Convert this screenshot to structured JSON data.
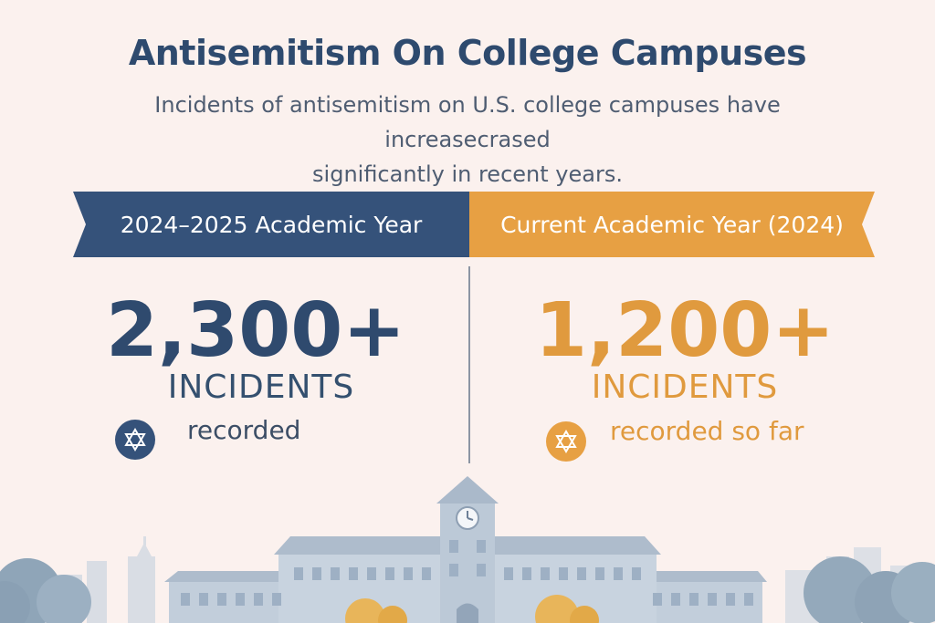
{
  "title": "Antisemitism On College Campuses",
  "subtitle_line1": "Incidents of antisemitism on U.S. college campuses have increasecrased",
  "subtitle_line2": "significantly in recent years.",
  "left": {
    "banner": "2024–2025 Academic Year",
    "count": "2,300+",
    "unit": "INCIDENTS",
    "note": "recorded",
    "icon": "star-of-david-icon",
    "color": "#35527a"
  },
  "right": {
    "banner": "Current Academic Year (2024)",
    "count": "1,200+",
    "unit": "INCIDENTS",
    "note": "recorded so far",
    "icon": "star-of-david-icon",
    "color": "#e7a043"
  },
  "colors": {
    "background": "#fbf1ee",
    "navy": "#2f4a6e",
    "orange": "#e09a3e"
  }
}
